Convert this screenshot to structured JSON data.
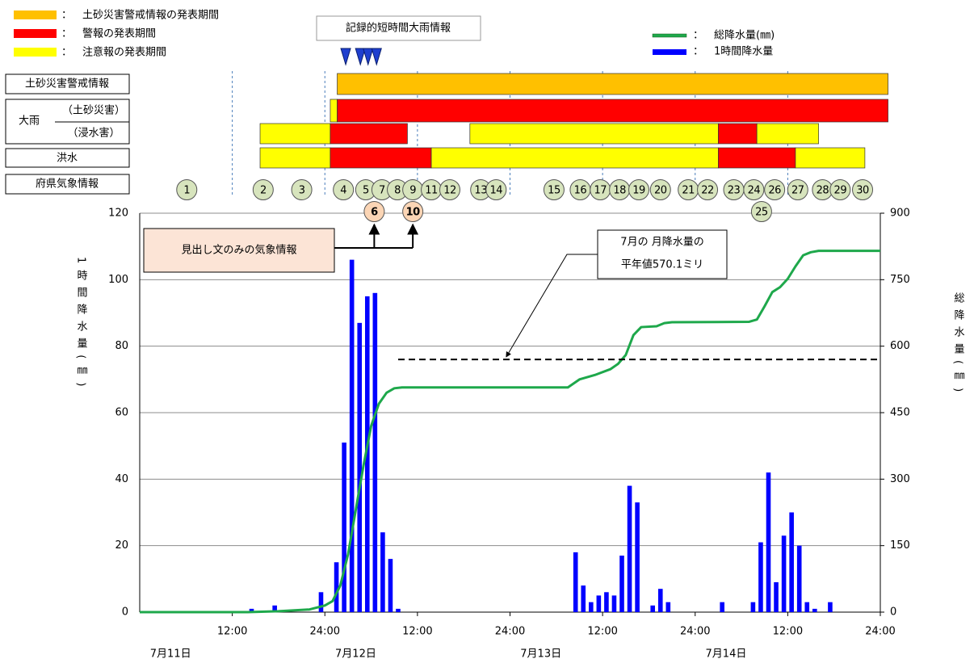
{
  "chart_data": {
    "type": "combo",
    "xlim": [
      0,
      96
    ],
    "xticks": [
      {
        "value": 12,
        "label": "12:00"
      },
      {
        "value": 24,
        "label": "24:00"
      },
      {
        "value": 36,
        "label": "12:00"
      },
      {
        "value": 48,
        "label": "24:00"
      },
      {
        "value": 60,
        "label": "12:00"
      },
      {
        "value": 72,
        "label": "24:00"
      },
      {
        "value": 84,
        "label": "12:00"
      },
      {
        "value": 96,
        "label": "24:00"
      }
    ],
    "day_labels": [
      "7月11日",
      "7月12日",
      "7月13日",
      "7月14日"
    ],
    "ylim": [
      0,
      120
    ],
    "yticks": [
      0,
      20,
      40,
      60,
      80,
      100,
      120
    ],
    "y2lim": [
      0,
      900
    ],
    "y2ticks": [
      0,
      150,
      300,
      450,
      600,
      750,
      900
    ],
    "ylabel": "1時間降水量(㎜)",
    "y2label": "総降水量(㎜)",
    "grid": true,
    "legend_separator": "：",
    "series": [
      {
        "name": "1時間降水量",
        "type": "bar",
        "color": "#0000ff",
        "x": [
          15,
          18,
          24,
          26,
          27,
          28,
          29,
          30,
          31,
          32,
          33,
          34,
          57,
          58,
          59,
          60,
          61,
          62,
          63,
          64,
          65,
          67,
          68,
          69,
          76,
          80,
          81,
          82,
          83,
          84,
          85,
          86,
          87,
          88,
          90
        ],
        "values": [
          1,
          2,
          6,
          15,
          51,
          106,
          87,
          95,
          96,
          24,
          16,
          1,
          18,
          8,
          3,
          5,
          6,
          5,
          17,
          38,
          33,
          2,
          7,
          3,
          3,
          3,
          21,
          42,
          9,
          23,
          30,
          20,
          3,
          1,
          3
        ]
      },
      {
        "name": "総降水量(㎜)",
        "type": "line",
        "axis": "y2",
        "color": "#1ea84b",
        "x": [
          0,
          14,
          18,
          22,
          24,
          25,
          26,
          27,
          28,
          29,
          30,
          31,
          32,
          33,
          34,
          55.5,
          57,
          59,
          61,
          62,
          63,
          64,
          65,
          67,
          68,
          69,
          79,
          80,
          81,
          82,
          83,
          84,
          85,
          86,
          87,
          88,
          96
        ],
        "values": [
          0,
          0,
          2,
          6,
          15,
          25,
          60,
          130,
          230,
          330,
          420,
          470,
          495,
          505,
          507,
          507,
          525,
          535,
          548,
          560,
          580,
          625,
          643,
          645,
          652,
          654,
          655,
          660,
          690,
          722,
          733,
          752,
          780,
          805,
          812,
          815,
          815
        ]
      }
    ],
    "reference_line": {
      "value": 570.1,
      "axis": "y2",
      "x_start": 33.5,
      "label_lines": [
        "7月の 月降水量の",
        "平年値570.1ミリ"
      ]
    },
    "warnings": {
      "legend": [
        {
          "name": "土砂災害警戒情報の発表期間",
          "color": "#ffc000"
        },
        {
          "name": "警報の発表期間",
          "color": "#ff0000"
        },
        {
          "name": "注意報の発表期間",
          "color": "#ffff00"
        }
      ],
      "group_label": "大雨",
      "rows": [
        {
          "label": "土砂災害警戒情報",
          "periods": [
            {
              "start": 25.6,
              "end": 97,
              "level": 0
            }
          ]
        },
        {
          "label": "（土砂災害）",
          "periods": [
            {
              "start": 24.7,
              "end": 25.6,
              "level": 2
            },
            {
              "start": 25.6,
              "end": 97,
              "level": 1
            }
          ]
        },
        {
          "label": "（浸水害）",
          "periods": [
            {
              "start": 15.6,
              "end": 24.7,
              "level": 2
            },
            {
              "start": 24.7,
              "end": 34.7,
              "level": 1
            },
            {
              "start": 42.8,
              "end": 75,
              "level": 2
            },
            {
              "start": 75,
              "end": 80,
              "level": 1
            },
            {
              "start": 80,
              "end": 88,
              "level": 2
            }
          ]
        },
        {
          "label": "洪水",
          "periods": [
            {
              "start": 15.6,
              "end": 24.7,
              "level": 2
            },
            {
              "start": 24.7,
              "end": 37.8,
              "level": 1
            },
            {
              "start": 37.8,
              "end": 75,
              "level": 2
            },
            {
              "start": 75,
              "end": 85,
              "level": 1
            },
            {
              "start": 85,
              "end": 94,
              "level": 2
            }
          ]
        }
      ]
    },
    "record_rain": {
      "label": "記録的短時間大雨情報",
      "times": [
        26.7,
        28.6,
        29.6,
        30.7
      ]
    },
    "bulletins": {
      "label": "府県気象情報",
      "headline_note": "見出し文のみの気象情報",
      "items": [
        {
          "label": "1",
          "time": 6.1
        },
        {
          "label": "2",
          "time": 16.0
        },
        {
          "label": "3",
          "time": 21.0
        },
        {
          "label": "4",
          "time": 26.4
        },
        {
          "label": "5",
          "time": 29.3
        },
        {
          "label": "6",
          "time": 30.4,
          "headline": true
        },
        {
          "label": "7",
          "time": 31.4
        },
        {
          "label": "8",
          "time": 33.4
        },
        {
          "label": "9",
          "time": 35.4
        },
        {
          "label": "10",
          "time": 35.4,
          "headline": true
        },
        {
          "label": "11",
          "time": 37.8
        },
        {
          "label": "12",
          "time": 40.2
        },
        {
          "label": "13",
          "time": 44.2
        },
        {
          "label": "14",
          "time": 46.2
        },
        {
          "label": "15",
          "time": 53.7
        },
        {
          "label": "16",
          "time": 57.1
        },
        {
          "label": "17",
          "time": 59.7
        },
        {
          "label": "18",
          "time": 62.2
        },
        {
          "label": "19",
          "time": 64.7
        },
        {
          "label": "20",
          "time": 67.5
        },
        {
          "label": "21",
          "time": 71.1
        },
        {
          "label": "22",
          "time": 73.6
        },
        {
          "label": "23",
          "time": 77.0
        },
        {
          "label": "24",
          "time": 79.6
        },
        {
          "label": "25",
          "time": 80.6
        },
        {
          "label": "26",
          "time": 82.3
        },
        {
          "label": "27",
          "time": 85.3
        },
        {
          "label": "28",
          "time": 88.5
        },
        {
          "label": "29",
          "time": 90.8
        },
        {
          "label": "30",
          "time": 93.7
        }
      ]
    }
  }
}
